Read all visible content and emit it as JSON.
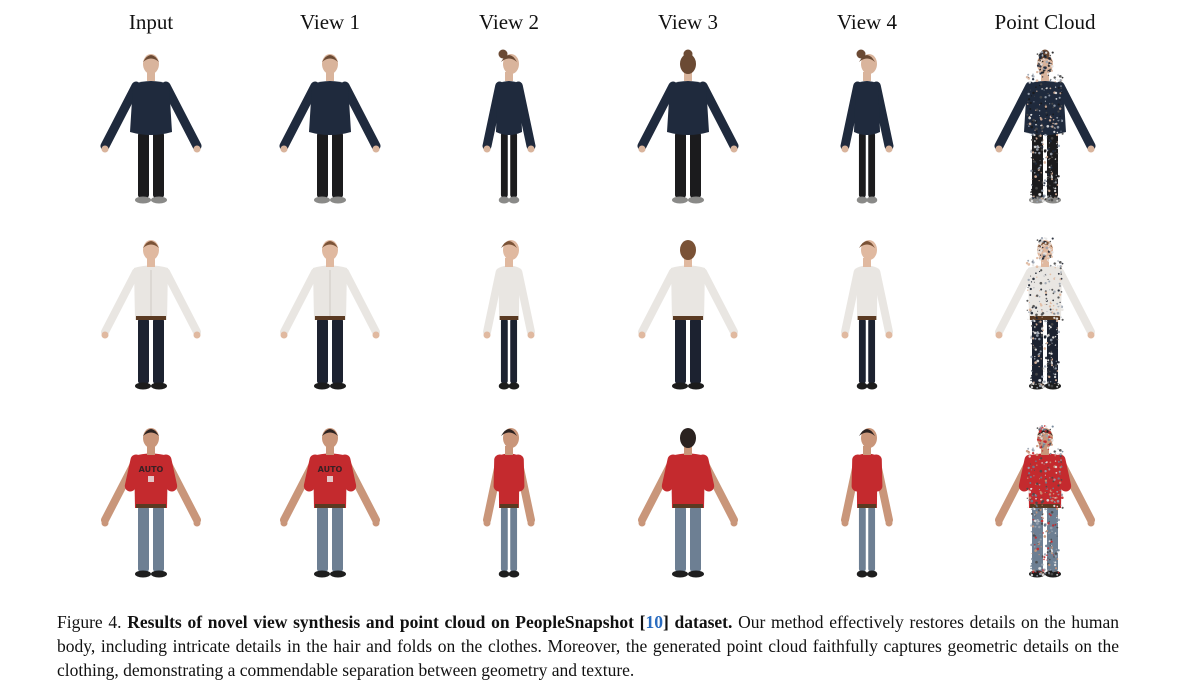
{
  "figure": {
    "columns": [
      "Input",
      "View 1",
      "View 2",
      "View 3",
      "View 4",
      "Point Cloud"
    ],
    "rows": [
      {
        "subject": "woman-navy-top-black-pants",
        "colors": {
          "top": "#1f2a3d",
          "bottom": "#1b1b1d",
          "skin": "#d9b49c",
          "hair": "#6b4a34",
          "shoes": "#8a8a88"
        },
        "top_style": "loose-top"
      },
      {
        "subject": "man-white-shirt-navy-pants",
        "colors": {
          "top": "#e9e6e2",
          "bottom": "#1c2230",
          "skin": "#e0b9a0",
          "hair": "#7a5236",
          "shoes": "#1c1c1c"
        },
        "top_style": "dress-shirt"
      },
      {
        "subject": "man-red-tshirt-jeans",
        "colors": {
          "top": "#c42a2e",
          "bottom": "#6d7f93",
          "skin": "#c9967a",
          "hair": "#2b2220",
          "shoes": "#1e1e1e"
        },
        "top_style": "tshirt",
        "shirt_print": "AUTO"
      }
    ]
  },
  "caption": {
    "label": "Figure 4.",
    "title_before_ref": "Results of novel view synthesis and point cloud on PeopleSnapshot [",
    "ref": "10",
    "title_after_ref": "] dataset.",
    "body": "Our method effectively restores details on the human body, including intricate details in the hair and folds on the clothes. Moreover, the generated point cloud faithfully captures geometric details on the clothing, demonstrating a commendable separation between geometry and texture."
  }
}
